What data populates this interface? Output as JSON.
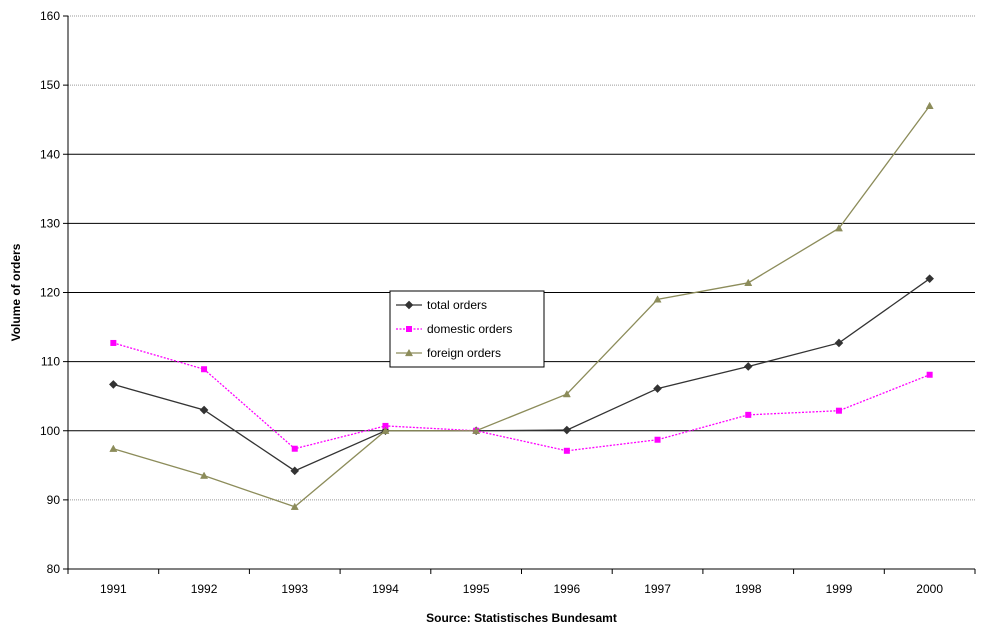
{
  "chart_data": {
    "type": "line",
    "title": "",
    "xlabel": "Source: Statistisches Bundesamt",
    "ylabel": "Volume of orders",
    "x": [
      "1991",
      "1992",
      "1993",
      "1994",
      "1995",
      "1996",
      "1997",
      "1998",
      "1999",
      "2000"
    ],
    "ylim": [
      80,
      160
    ],
    "yticks": [
      "80",
      "90",
      "100",
      "110",
      "120",
      "130",
      "140",
      "150",
      "160"
    ],
    "grid": true,
    "legend_position": "center",
    "series": [
      {
        "name": "total orders",
        "color": "#333333",
        "marker": "diamond",
        "values": [
          106.7,
          103.0,
          94.2,
          100.0,
          100.0,
          100.1,
          106.1,
          109.3,
          112.7,
          122.0
        ]
      },
      {
        "name": "domestic orders",
        "color": "#ff00ff",
        "marker": "square",
        "values": [
          112.7,
          108.9,
          97.4,
          100.7,
          100.0,
          97.1,
          98.7,
          102.3,
          102.9,
          108.1
        ]
      },
      {
        "name": "foreign orders",
        "color": "#8c8c5a",
        "marker": "triangle",
        "values": [
          97.4,
          93.5,
          89.0,
          100.0,
          100.0,
          105.3,
          119.0,
          121.4,
          129.3,
          147.0
        ]
      }
    ]
  }
}
